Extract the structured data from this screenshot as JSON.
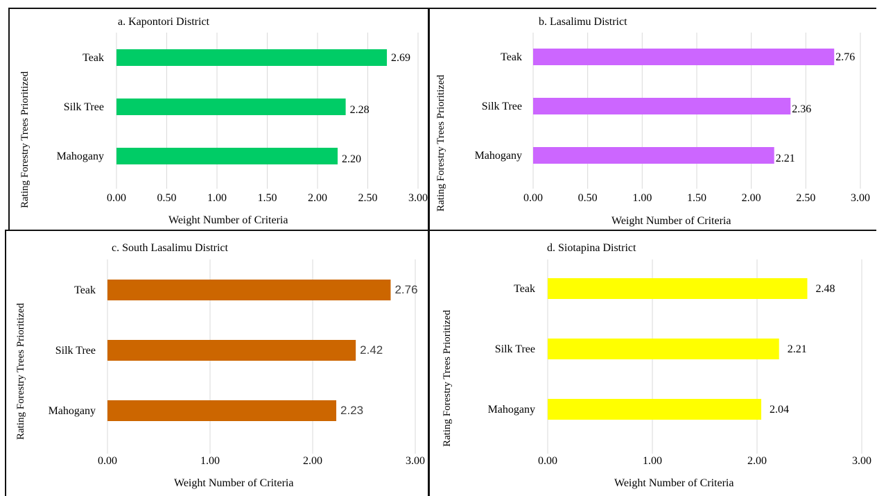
{
  "chart_data": [
    {
      "type": "bar",
      "orientation": "horizontal",
      "title": "a. Kapontori  District",
      "xlabel": "Weight  Number  of  Criteria",
      "ylabel": "Rating Forestry Trees Prioritized",
      "categories": [
        "Teak",
        "Silk Tree",
        "Mahogany"
      ],
      "values": [
        2.69,
        2.28,
        2.2
      ],
      "data_labels": [
        "2.69",
        "2.28",
        "2.20"
      ],
      "xlim": [
        0,
        3
      ],
      "x_ticks": [
        "0.00",
        "0.50",
        "1.00",
        "1.50",
        "2.00",
        "2.50",
        "3.00"
      ],
      "bar_color": "#00CC66",
      "grid": true
    },
    {
      "type": "bar",
      "orientation": "horizontal",
      "title": "b. Lasalimu   District",
      "xlabel": "Weight  Number  of  Criteria",
      "ylabel": "Rating Forestry Trees Prioritized",
      "categories": [
        "Teak",
        "Silk Tree",
        "Mahogany"
      ],
      "values": [
        2.76,
        2.36,
        2.21
      ],
      "data_labels": [
        "2.76",
        "2.36",
        "2.21"
      ],
      "xlim": [
        0,
        3
      ],
      "x_ticks": [
        "0.00",
        "0.50",
        "1.00",
        "1.50",
        "2.00",
        "2.50",
        "3.00"
      ],
      "bar_color": "#CC66FF",
      "grid": true
    },
    {
      "type": "bar",
      "orientation": "horizontal",
      "title": "c. South Lasalimu  District",
      "xlabel": "Weight  Number  of  Criteria",
      "ylabel": "Rating Forestry Trees Prioritized",
      "categories": [
        "Teak",
        "Silk Tree",
        "Mahogany"
      ],
      "values": [
        2.76,
        2.42,
        2.23
      ],
      "data_labels": [
        "2.76",
        "2.42",
        "2.23"
      ],
      "xlim": [
        0,
        3
      ],
      "x_ticks": [
        "0.00",
        "1.00",
        "2.00",
        "3.00"
      ],
      "bar_color": "#CC6600",
      "grid": true
    },
    {
      "type": "bar",
      "orientation": "horizontal",
      "title": "d. Siotapina  District",
      "xlabel": "Weight  Number  of  Criteria",
      "ylabel": "Rating Forestry Trees Prioritized",
      "categories": [
        "Teak",
        "Silk Tree",
        "Mahogany"
      ],
      "values": [
        2.48,
        2.21,
        2.04
      ],
      "data_labels": [
        "2.48",
        "2.21",
        "2.04"
      ],
      "xlim": [
        0,
        3
      ],
      "x_ticks": [
        "0.00",
        "1.00",
        "2.00",
        "3.00"
      ],
      "bar_color": "#FFFF00",
      "grid": true
    }
  ]
}
